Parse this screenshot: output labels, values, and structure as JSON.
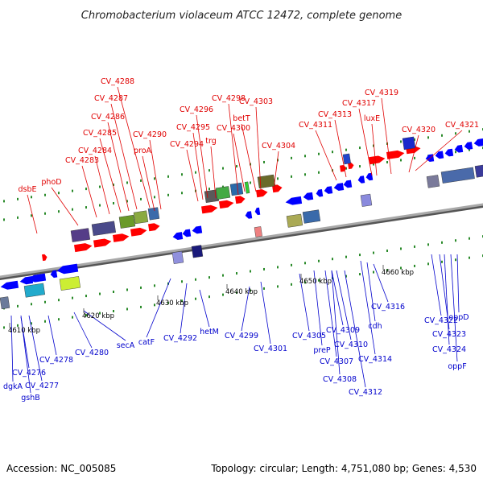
{
  "title": "Chromobacterium violaceum ATCC 12472, complete genome",
  "footer": {
    "accession": "Accession: NC_005085",
    "summary": "Topology: circular; Length: 4,751,080 bp; Genes: 4,530"
  },
  "colors": {
    "forward": "#ff0000",
    "reverse": "#0000ff",
    "label_top": "#e00000",
    "label_bottom": "#0000cc",
    "backbone": "#888888"
  },
  "kbp_ticks": [
    "4610 kbp",
    "4620 kbp",
    "4630 kbp",
    "4640 kbp",
    "4650 kbp",
    "4660 kbp"
  ],
  "top_genes": [
    "dsbE",
    "phoD",
    "CV_4283",
    "CV_4284",
    "CV_4285",
    "CV_4286",
    "CV_4287",
    "CV_4288",
    "proA",
    "CV_4290",
    "CV_4294",
    "CV_4295",
    "CV_4296",
    "trg",
    "CV_4298",
    "CV_4300",
    "betT",
    "CV_4303",
    "CV_4304",
    "CV_4311",
    "CV_4313",
    "CV_4317",
    "luxE",
    "CV_4319",
    "CV_4320",
    "CV_4321"
  ],
  "bottom_genes": [
    "dgkA",
    "gshB",
    "CV_4276",
    "CV_4277",
    "CV_4278",
    "CV_4280",
    "secA",
    "catF",
    "CV_4292",
    "hetM",
    "CV_4299",
    "CV_4301",
    "CV_4305",
    "preP",
    "CV_4307",
    "CV_4308",
    "CV_4309",
    "CV_4310",
    "CV_4312",
    "CV_4314",
    "cdh",
    "CV_4316",
    "CV_4322",
    "CV_4323",
    "CV_4324",
    "oppF",
    "oppD"
  ]
}
